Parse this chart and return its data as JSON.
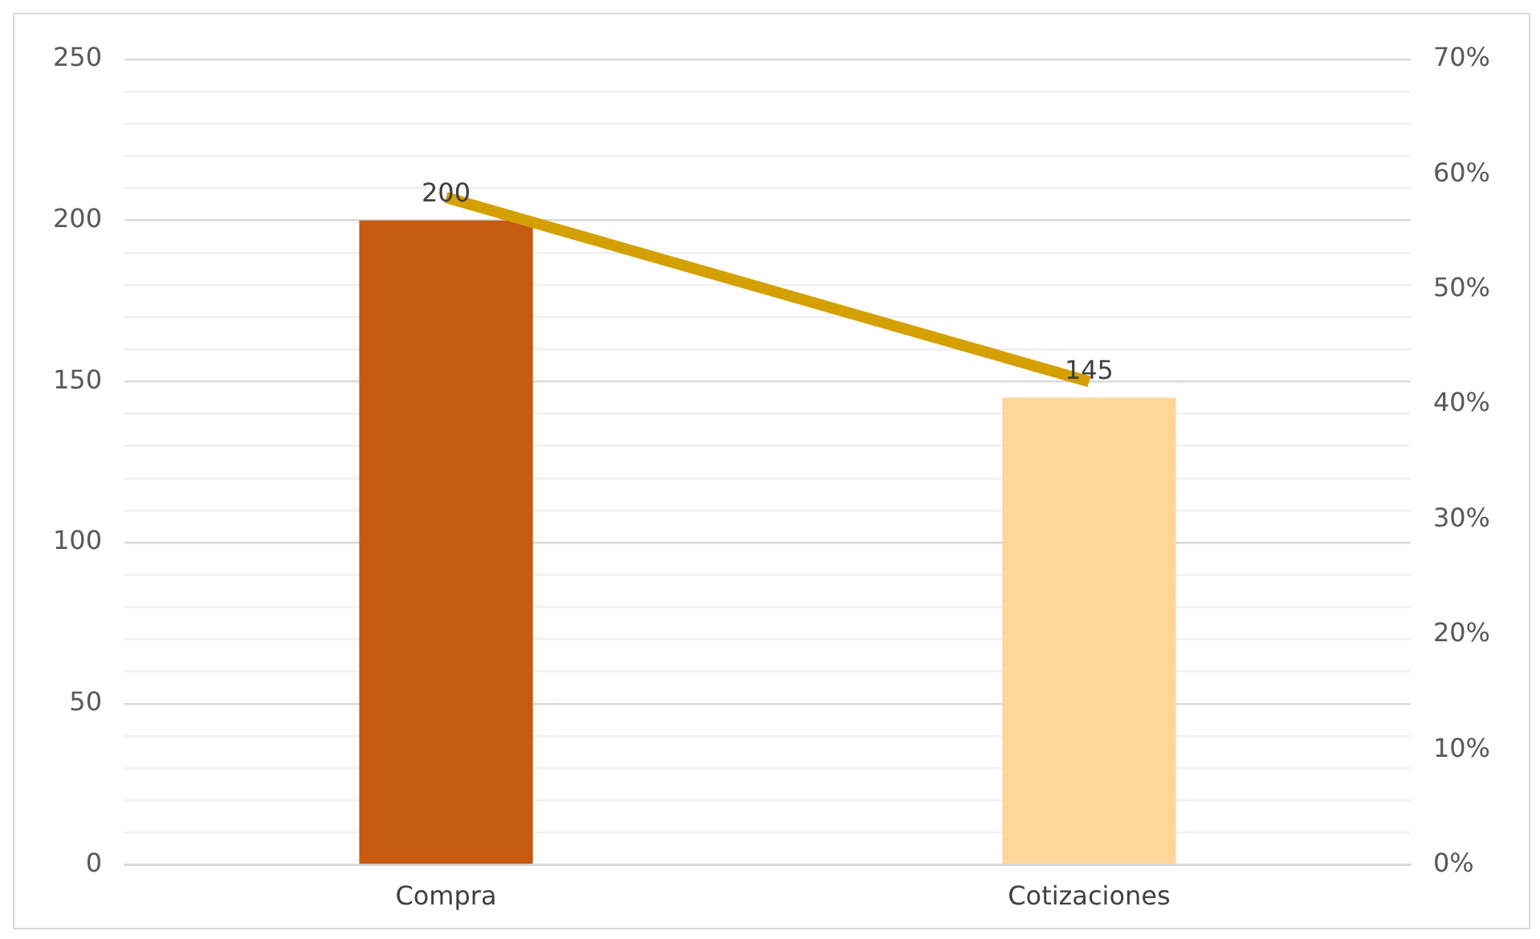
{
  "chart_data": {
    "type": "bar",
    "categories": [
      "Compra",
      "Cotizaciones"
    ],
    "series": [
      {
        "colors": [
          "#c55a11",
          "#ffd699"
        ],
        "values": [
          200,
          145
        ],
        "value_labels": [
          "200",
          "145"
        ]
      },
      {
        "type": "line",
        "axis": "y2",
        "color": "#d4a000",
        "values": [
          58,
          42
        ],
        "marker": "none"
      }
    ],
    "ylim": [
      0,
      250
    ],
    "yticks": [
      0,
      {
        "value": 10,
        "label": null
      },
      {
        "value": 20,
        "label": null
      },
      {
        "value": 30,
        "label": null
      },
      {
        "value": 40,
        "label": null
      },
      50,
      {
        "value": 60,
        "label": null
      },
      {
        "value": 70,
        "label": null
      },
      {
        "value": 80,
        "label": null
      },
      {
        "value": 90,
        "label": null
      },
      100,
      {
        "value": 110,
        "label": null
      },
      {
        "value": 120,
        "label": null
      },
      {
        "value": 130,
        "label": null
      },
      {
        "value": 140,
        "label": null
      },
      150,
      {
        "value": 160,
        "label": null
      },
      {
        "value": 170,
        "label": null
      },
      {
        "value": 180,
        "label": null
      },
      {
        "value": 190,
        "label": null
      },
      200,
      {
        "value": 210,
        "label": null
      },
      {
        "value": 220,
        "label": null
      },
      {
        "value": 230,
        "label": null
      },
      {
        "value": 240,
        "label": null
      },
      250
    ],
    "y2lim": [
      0,
      70
    ],
    "y2ticks": [
      {
        "value": 0,
        "label": "0%"
      },
      {
        "value": 10,
        "label": "10%"
      },
      {
        "value": 20,
        "label": "20%"
      },
      {
        "value": 30,
        "label": "30%"
      },
      {
        "value": 40,
        "label": "40%"
      },
      {
        "value": 50,
        "label": "50%"
      },
      {
        "value": 60,
        "label": "60%"
      },
      {
        "value": 70,
        "label": "70%"
      }
    ],
    "grid": "y",
    "legend": false
  }
}
